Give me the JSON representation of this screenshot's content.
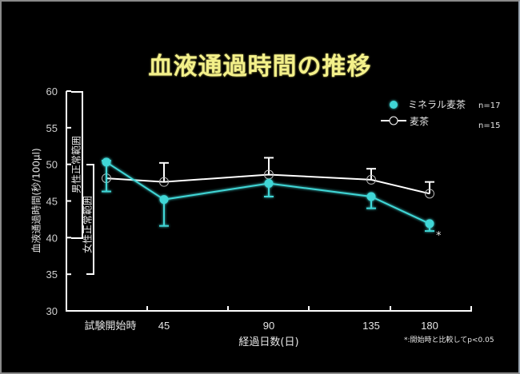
{
  "title": "血液通過時間の推移",
  "legend": {
    "items": [
      {
        "label": "ミネラル麦茶",
        "n": "n=17",
        "color": "#3fd6d6",
        "marker": "filled-circle"
      },
      {
        "label": "麦茶",
        "n": "n=15",
        "color": "#ffffff",
        "marker": "open-circle"
      }
    ]
  },
  "annotations": {
    "male_range": "男性正常範囲",
    "female_range": "女性正常範囲",
    "asterisk": "*",
    "footnote": "*:開始時と比較してp<0.05"
  },
  "chart_data": {
    "type": "line",
    "title": "血液通過時間の推移",
    "xlabel": "経過日数(日)",
    "ylabel": "血液通過時間(秒/100μl)",
    "categories": [
      "試験開始時",
      "45",
      "90",
      "135",
      "180"
    ],
    "ylim": [
      30,
      60
    ],
    "yticks": [
      30,
      35,
      40,
      45,
      50,
      55,
      60
    ],
    "grid": false,
    "legend_position": "top-right",
    "series": [
      {
        "name": "ミネラル麦茶",
        "n": 17,
        "color": "#3fd6d6",
        "values": [
          50.3,
          45.2,
          47.4,
          45.6,
          41.9
        ],
        "error_upper": [
          50.5,
          45.2,
          47.4,
          45.6,
          41.9
        ],
        "error_lower": [
          46.3,
          41.6,
          45.6,
          44.0,
          40.9
        ]
      },
      {
        "name": "麦茶",
        "n": 15,
        "color": "#ffffff",
        "values": [
          48.1,
          47.6,
          48.6,
          47.9,
          46.0
        ],
        "error_upper": [
          48.1,
          50.2,
          50.9,
          49.4,
          47.6
        ],
        "error_lower": [
          48.1,
          47.6,
          48.6,
          47.9,
          46.0
        ]
      }
    ],
    "reference_ranges": [
      {
        "label": "男性正常範囲",
        "from": 40,
        "to": 60
      },
      {
        "label": "女性正常範囲",
        "from": 35,
        "to": 50
      }
    ],
    "significance": [
      {
        "series": "ミネラル麦茶",
        "category": "180",
        "mark": "*"
      }
    ],
    "footnote": "*:開始時と比較してp<0.05"
  }
}
